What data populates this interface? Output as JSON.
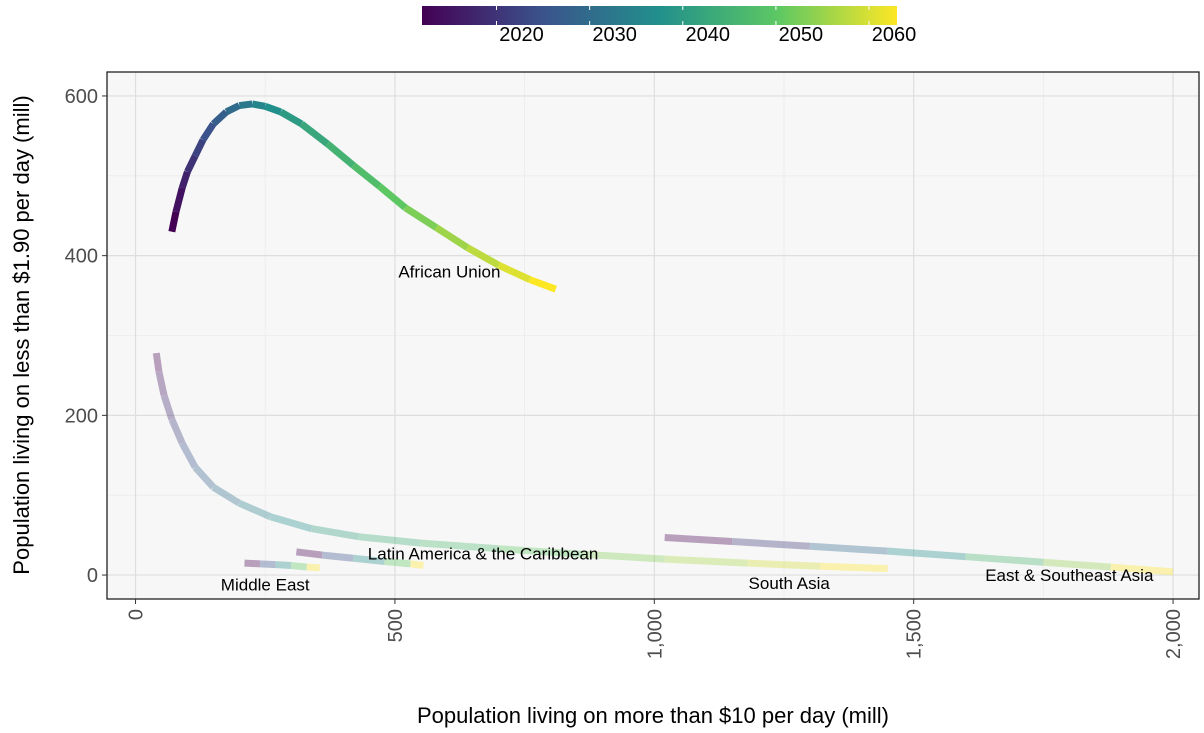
{
  "chart_data": {
    "type": "line",
    "xlabel": "Population living on more than $10 per day (mill)",
    "ylabel": "Population living on less than $1.90 per day (mill)",
    "xlim": [
      -55,
      2050
    ],
    "ylim": [
      -30,
      630
    ],
    "x_ticks": [
      {
        "value": 0,
        "label": "0"
      },
      {
        "value": 500,
        "label": "500"
      },
      {
        "value": 1000,
        "label": "1,000"
      },
      {
        "value": 1500,
        "label": "1,500"
      },
      {
        "value": 2000,
        "label": "2,000"
      }
    ],
    "y_ticks": [
      {
        "value": 0,
        "label": "0"
      },
      {
        "value": 200,
        "label": "200"
      },
      {
        "value": 400,
        "label": "400"
      },
      {
        "value": 600,
        "label": "600"
      }
    ],
    "grid": true,
    "legend": {
      "type": "colorbar",
      "position": "top",
      "range": [
        2012,
        2063
      ],
      "ticks": [
        {
          "value": 2020,
          "label": "2020"
        },
        {
          "value": 2030,
          "label": "2030"
        },
        {
          "value": 2040,
          "label": "2040"
        },
        {
          "value": 2050,
          "label": "2050"
        },
        {
          "value": 2060,
          "label": "2060"
        }
      ],
      "colormap": [
        "#440154",
        "#3b528b",
        "#21908c",
        "#5dc863",
        "#fde725"
      ]
    },
    "series": [
      {
        "name": "African Union",
        "opacity": 1,
        "label_at": [
          605,
          380
        ],
        "x": [
          70,
          78,
          90,
          100,
          115,
          130,
          150,
          175,
          200,
          225,
          250,
          280,
          320,
          370,
          420,
          470,
          520,
          580,
          640,
          700,
          760,
          810
        ],
        "y": [
          430,
          455,
          485,
          505,
          525,
          545,
          565,
          580,
          588,
          590,
          587,
          580,
          565,
          540,
          513,
          487,
          460,
          435,
          410,
          388,
          370,
          358
        ]
      },
      {
        "name": "South Asia",
        "opacity": 0.35,
        "label_at": [
          1260,
          -10
        ],
        "x": [
          40,
          45,
          55,
          70,
          90,
          115,
          150,
          200,
          260,
          340,
          430,
          550,
          700,
          860,
          1020,
          1180,
          1320,
          1450
        ],
        "y": [
          278,
          255,
          225,
          195,
          165,
          135,
          110,
          90,
          73,
          58,
          48,
          40,
          33,
          26,
          20,
          15,
          11,
          8
        ]
      },
      {
        "name": "East & Southeast Asia",
        "opacity": 0.35,
        "label_at": [
          1800,
          0
        ],
        "x": [
          1020,
          1150,
          1300,
          1450,
          1600,
          1750,
          1880,
          2000
        ],
        "y": [
          47,
          42,
          36,
          30,
          23,
          16,
          10,
          4
        ]
      },
      {
        "name": "Latin America & the Caribbean",
        "opacity": 0.35,
        "label_at": [
          670,
          27
        ],
        "x": [
          310,
          360,
          420,
          480,
          530,
          555
        ],
        "y": [
          29,
          25,
          21,
          17,
          14,
          12
        ]
      },
      {
        "name": "Middle East",
        "opacity": 0.35,
        "label_at": [
          250,
          -12
        ],
        "x": [
          210,
          240,
          270,
          300,
          330,
          355
        ],
        "y": [
          15,
          14,
          13,
          12,
          10,
          9
        ]
      }
    ]
  }
}
